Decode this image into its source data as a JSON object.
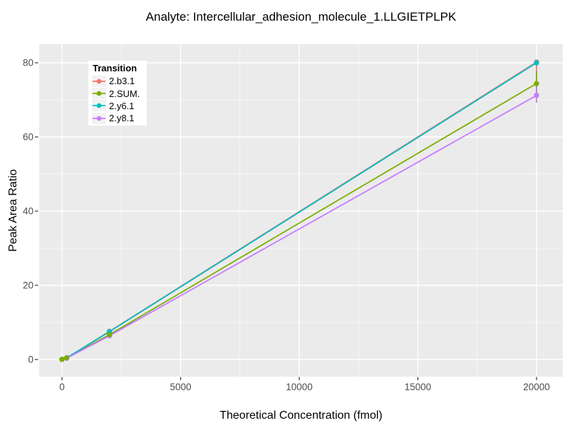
{
  "title": "Analyte: Intercellular_adhesion_molecule_1.LLGIETPLPK",
  "chart_data": {
    "type": "line",
    "title": "Analyte: Intercellular_adhesion_molecule_1.LLGIETPLPK",
    "xlabel": "Theoretical Concentration (fmol)",
    "ylabel": "Peak Area Ratio",
    "xlim": [
      -1000,
      21100
    ],
    "ylim": [
      -4.6,
      85
    ],
    "x_ticks": [
      0,
      5000,
      10000,
      15000,
      20000
    ],
    "x_tick_labels": [
      "0",
      "5000",
      "10000",
      "15000",
      "20000"
    ],
    "x_minor_ticks": [
      2500,
      7500,
      12500,
      17500
    ],
    "y_ticks": [
      0,
      20,
      40,
      60,
      80
    ],
    "y_tick_labels": [
      "0",
      "20",
      "40",
      "60",
      "80"
    ],
    "y_minor_ticks": [
      10,
      30,
      50,
      70
    ],
    "grid": true,
    "legend_title": "Transition",
    "legend_position": "top-left-inside",
    "panel_bg_color": "#EBEBEB",
    "grid_color": "#FFFFFF",
    "tick_color": "#333333",
    "tick_label_color": "#4D4D4D",
    "series": [
      {
        "name": "2.b3.1",
        "color": "#F8766D",
        "points": [
          [
            0,
            0.05
          ],
          [
            200,
            0.45
          ],
          [
            2000,
            7.6
          ],
          [
            20000,
            80.2
          ]
        ],
        "error_bar": {
          "x": 20000,
          "low": 77.3,
          "high": 80.5
        }
      },
      {
        "name": "2.SUM.",
        "color": "#7CAE00",
        "points": [
          [
            0,
            0.05
          ],
          [
            200,
            0.45
          ],
          [
            2000,
            6.7
          ],
          [
            20000,
            74.4
          ]
        ],
        "error_bar": {
          "x": 20000,
          "low": 72.0,
          "high": 77.6
        }
      },
      {
        "name": "2.y6.1",
        "color": "#00BFC4",
        "points": [
          [
            0,
            0.05
          ],
          [
            200,
            0.45
          ],
          [
            2000,
            7.5
          ],
          [
            20000,
            80.0
          ]
        ],
        "error_bar": {
          "x": 20000,
          "low": 79.3,
          "high": 80.5
        }
      },
      {
        "name": "2.y8.1",
        "color": "#C77CFF",
        "points": [
          [
            0,
            0.05
          ],
          [
            200,
            0.35
          ],
          [
            2000,
            6.4
          ],
          [
            20000,
            71.2
          ]
        ],
        "error_bar": {
          "x": 20000,
          "low": 69.2,
          "high": 73.5
        }
      }
    ]
  }
}
